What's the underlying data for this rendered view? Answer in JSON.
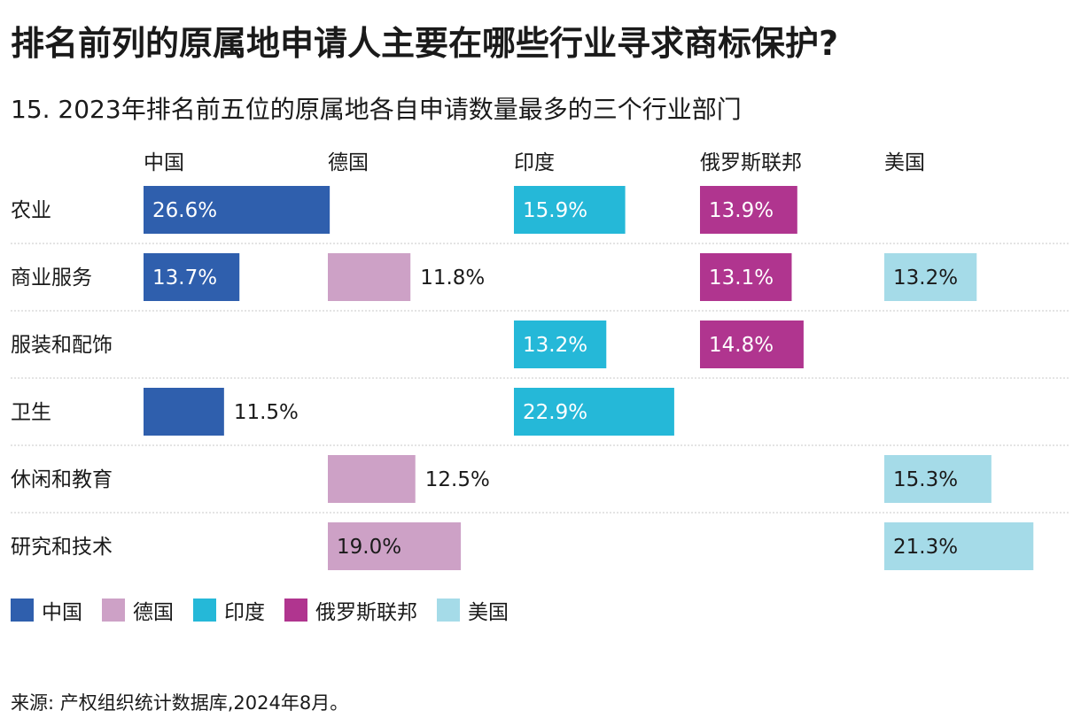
{
  "headline": "排名前列的原属地申请人主要在哪些行业寻求商标保护?",
  "source": "来源: 产权组织统计数据库,2024年8月。",
  "chart_data": {
    "type": "bar",
    "title": "15. 2023年排名前五位的原属地各自申请数量最多的三个行业部门",
    "countries": [
      "中国",
      "德国",
      "印度",
      "俄罗斯联邦",
      "美国"
    ],
    "colors": [
      "#2f5fad",
      "#cda1c6",
      "#25b8d8",
      "#b0358f",
      "#a5dbe8"
    ],
    "label_colors": [
      "#ffffff",
      "#1a1a1a",
      "#ffffff",
      "#ffffff",
      "#1a1a1a"
    ],
    "categories": [
      "农业",
      "商业服务",
      "服装和配饰",
      "卫生",
      "休闲和教育",
      "研究和技术"
    ],
    "series": [
      {
        "name": "中国",
        "values": [
          26.6,
          13.7,
          null,
          11.5,
          null,
          null
        ]
      },
      {
        "name": "德国",
        "values": [
          null,
          11.8,
          null,
          null,
          12.5,
          19.0
        ]
      },
      {
        "name": "印度",
        "values": [
          15.9,
          null,
          13.2,
          22.9,
          null,
          null
        ]
      },
      {
        "name": "俄罗斯联邦",
        "values": [
          13.9,
          13.1,
          14.8,
          null,
          null,
          null
        ]
      },
      {
        "name": "美国",
        "values": [
          null,
          13.2,
          null,
          null,
          15.3,
          21.3
        ]
      }
    ],
    "unit": "%",
    "legend_position": "bottom-left"
  }
}
